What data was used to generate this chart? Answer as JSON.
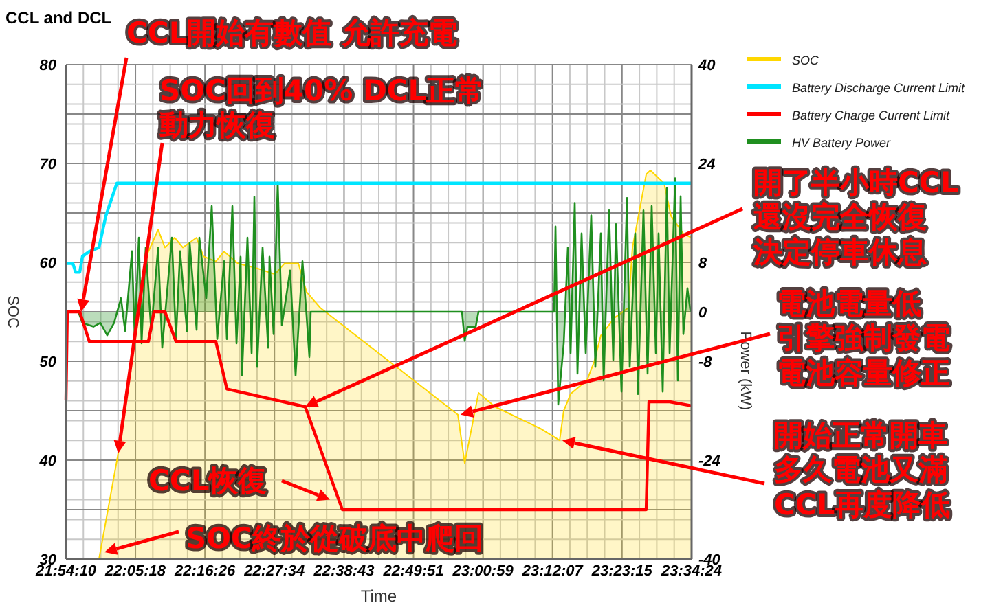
{
  "chart_data": {
    "type": "line",
    "title": "CCL and DCL",
    "xlabel": "Time",
    "ylabel": "SOC",
    "y2label": "Power (kW)",
    "xlim": [
      21.9028,
      23.5733
    ],
    "xticks": [
      {
        "value": 21.9028,
        "label": "21:54:10"
      },
      {
        "value": 22.0883,
        "label": "22:05:18"
      },
      {
        "value": 22.2739,
        "label": "22:16:26"
      },
      {
        "value": 22.4594,
        "label": "22:27:34"
      },
      {
        "value": 22.6453,
        "label": "22:38:43"
      },
      {
        "value": 22.8308,
        "label": "22:49:51"
      },
      {
        "value": 23.0164,
        "label": "23:00:59"
      },
      {
        "value": 23.2019,
        "label": "23:12:07"
      },
      {
        "value": 23.3875,
        "label": "23:23:15"
      },
      {
        "value": 23.5733,
        "label": "23:34:24"
      }
    ],
    "ylim": [
      30,
      80
    ],
    "yticks": [
      30,
      40,
      50,
      60,
      70,
      80
    ],
    "y2lim": [
      -40,
      40
    ],
    "y2ticks": [
      -40,
      {
        "value": -32,
        "label": null
      },
      -24,
      {
        "value": -16,
        "label": null
      },
      -8,
      0,
      8,
      {
        "value": 16,
        "label": null
      },
      24,
      {
        "value": 32,
        "label": null
      },
      40
    ],
    "grid": true,
    "legend": "top right",
    "marker": "none",
    "series": [
      {
        "name": "SOC",
        "type": "area",
        "color": "#ffd700",
        "x": [
          21.9028,
          21.9909,
          22.0423,
          22.0827,
          22.1047,
          22.1194,
          22.1488,
          22.1671,
          22.1928,
          22.2149,
          22.2516,
          22.27,
          22.303,
          22.325,
          22.3617,
          22.4131,
          22.4609,
          22.4866,
          22.5233,
          22.5453,
          22.582,
          22.7656,
          22.9492,
          22.9675,
          23.0043,
          23.0483,
          23.1695,
          23.2209,
          23.2319,
          23.2502,
          23.2943,
          23.3127,
          23.331,
          23.3677,
          23.4044,
          23.4155,
          23.4522,
          23.4632,
          23.4999,
          23.5183,
          23.5513,
          23.5733
        ],
        "values": [
          30,
          30,
          40.7,
          51.7,
          57,
          60.8,
          63.3,
          61.5,
          62.5,
          61.5,
          62.5,
          60.6,
          60.1,
          61.1,
          59.9,
          59.4,
          58.8,
          59.9,
          59.9,
          57.0,
          55.4,
          50.0,
          44.6,
          39.7,
          46.8,
          45.4,
          43.2,
          42.0,
          45.0,
          46.7,
          48.1,
          49.9,
          52.6,
          54.4,
          55.4,
          61.5,
          68.9,
          69.3,
          68.0,
          64.7,
          62.9,
          62.5
        ]
      },
      {
        "name": "Battery Discharge Current Limit",
        "color": "#00e5ff",
        "x": [
          21.9028,
          21.9211,
          21.9285,
          21.9395,
          21.9468,
          21.9652,
          21.9909,
          22.0093,
          22.0386,
          23.5733
        ],
        "values": [
          59.9,
          59.9,
          59.0,
          59.0,
          60.6,
          61.1,
          61.5,
          64.7,
          68,
          68
        ]
      },
      {
        "name": "Battery Charge Current Limit",
        "color": "#ff0000",
        "x": [
          21.9028,
          21.9064,
          21.9395,
          21.9652,
          22.1231,
          22.1378,
          22.1671,
          22.1965,
          22.303,
          22.3324,
          22.5416,
          22.6407,
          23.4522,
          23.4595,
          23.5146,
          23.5733
        ],
        "values": [
          46.1,
          55,
          55,
          52,
          52,
          55,
          55,
          52,
          52,
          47.2,
          45.4,
          35,
          35,
          45.9,
          45.9,
          45.5
        ]
      },
      {
        "name": "HV Battery Power",
        "type": "area",
        "axis": "y2",
        "color": "#1f8f1f",
        "x": [
          21.9028,
          21.9358,
          21.9468,
          21.9762,
          21.9946,
          22.0129,
          22.0313,
          22.0497,
          22.0607,
          22.079,
          22.0864,
          22.0974,
          22.1047,
          22.1157,
          22.1304,
          22.1488,
          22.1598,
          22.1855,
          22.1965,
          22.2075,
          22.2259,
          22.2332,
          22.2516,
          22.2589,
          22.2773,
          22.292,
          22.3067,
          22.325,
          22.3324,
          22.3471,
          22.3581,
          22.3691,
          22.3728,
          22.3874,
          22.3985,
          22.4058,
          22.4131,
          22.4278,
          22.4425,
          22.4462,
          22.4572,
          22.4682,
          22.4792,
          22.5013,
          22.5159,
          22.5343,
          22.5453,
          22.5527,
          22.5563,
          22.9602,
          22.9639,
          22.9675,
          22.9749,
          22.9969,
          23.0043,
          23.2062,
          23.2099,
          23.2172,
          23.2319,
          23.2429,
          23.2502,
          23.2613,
          23.2686,
          23.2796,
          23.2906,
          23.3053,
          23.3163,
          23.331,
          23.3384,
          23.353,
          23.3641,
          23.3714,
          23.3861,
          23.4008,
          23.4081,
          23.4228,
          23.4301,
          23.4448,
          23.4558,
          23.4668,
          23.4779,
          23.4852,
          23.4962,
          23.5072,
          23.5146,
          23.5293,
          23.5366,
          23.544,
          23.5513,
          23.5623,
          23.5696,
          23.5733
        ],
        "values": [
          0,
          0,
          -1.8,
          -2.4,
          -1.8,
          -3.8,
          -1.8,
          2.2,
          -3.1,
          9.8,
          -4.2,
          12,
          -5.1,
          10.4,
          -3.1,
          10.4,
          -5.8,
          12,
          -4.4,
          9.8,
          -3.1,
          11.1,
          -2.9,
          12,
          2.2,
          17.1,
          -4.4,
          8.2,
          -4.4,
          17.1,
          -5.1,
          8.9,
          -10.3,
          12,
          -6.7,
          18.6,
          -8.9,
          10.4,
          -5.8,
          8.9,
          -3.6,
          20.9,
          -2.2,
          6.7,
          -10.3,
          8.2,
          -0.7,
          -7.3,
          0,
          0,
          -2.4,
          -4.7,
          -2.4,
          -2.4,
          0,
          0,
          13.8,
          -15,
          -5.1,
          10.4,
          -6.7,
          17.6,
          -10,
          12.7,
          -6.7,
          15.6,
          -8.9,
          12.7,
          -11.1,
          16.4,
          -7.8,
          14.2,
          -12.9,
          18.4,
          -8.9,
          12.7,
          -13.3,
          16.4,
          -10,
          17.1,
          -6.7,
          12.7,
          -12.9,
          20,
          -6.7,
          21.6,
          -11.1,
          18.7,
          -3.6,
          3.8,
          0.4,
          0
        ]
      }
    ],
    "annotations": [
      {
        "text": "CCL開始有數值 允許充電",
        "x": 21.9432,
        "y": 55
      },
      {
        "text": "SOC回到40% DCL正常動力恢復",
        "x": 22.0423,
        "y": 40.7
      },
      {
        "text": "開了半小時CCL還沒完全恢復決定停車休息",
        "x": 22.5416,
        "y": 45.4
      },
      {
        "text": "電池電量低引擎強制發電電池容量修正",
        "x": 22.9565,
        "y": 44.6
      },
      {
        "text": "開始正常開車多久電池又滿CCL再度降低",
        "x": 23.2282,
        "y": 42
      },
      {
        "text": "CCL恢復",
        "x": 22.6077,
        "y": 36
      },
      {
        "text": "SOC終於從破底中爬回",
        "x": 22.0056,
        "y": 30.7
      }
    ]
  }
}
